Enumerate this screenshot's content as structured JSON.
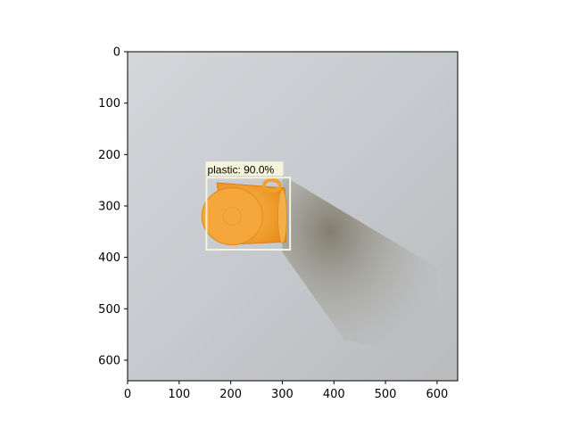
{
  "chart_data": {
    "type": "image",
    "title": "",
    "xlabel": "",
    "ylabel": "",
    "xlim": [
      0,
      640
    ],
    "ylim": [
      640,
      0
    ],
    "x_ticks": [
      0,
      100,
      200,
      300,
      400,
      500,
      600
    ],
    "y_ticks": [
      0,
      100,
      200,
      300,
      400,
      500,
      600
    ],
    "grid": false,
    "detections": [
      {
        "label_text": "plastic: 90.0%",
        "class": "plastic",
        "score": 90.0,
        "box": {
          "xmin": 153,
          "ymin": 245,
          "xmax": 315,
          "ymax": 385
        }
      }
    ]
  },
  "colors": {
    "background": "#c8cacd",
    "box_stroke": "#f5f5dc",
    "label_bg": "#f5f5dc",
    "object": "#f2a23a"
  }
}
